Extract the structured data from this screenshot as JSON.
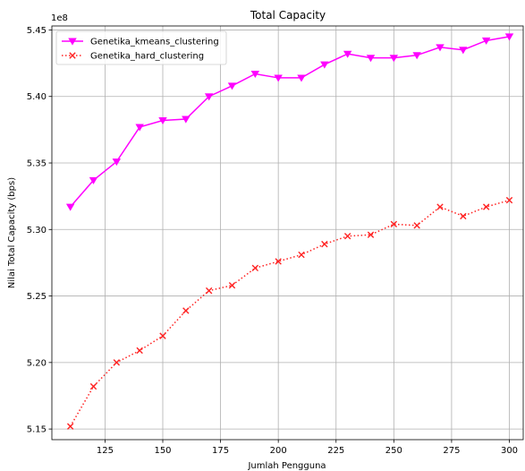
{
  "chart_data": {
    "type": "line",
    "title": "Total Capacity",
    "xlabel": "Jumlah Pengguna",
    "ylabel": "Nilai Total Capacity (bps)",
    "offset_label": "1e8",
    "xlim": [
      102,
      306
    ],
    "ylim": [
      5.142,
      5.453
    ],
    "grid": true,
    "legend_position": "top-left",
    "x": [
      110,
      120,
      130,
      140,
      150,
      160,
      170,
      180,
      190,
      200,
      210,
      220,
      230,
      240,
      250,
      260,
      270,
      280,
      290,
      300
    ],
    "xticks": [
      "125",
      "150",
      "175",
      "200",
      "225",
      "250",
      "275",
      "300"
    ],
    "xtick_values": [
      125,
      150,
      175,
      200,
      225,
      250,
      275,
      300
    ],
    "yticks": [
      "5.15",
      "5.20",
      "5.25",
      "5.30",
      "5.35",
      "5.40",
      "5.45"
    ],
    "ytick_values": [
      5.15,
      5.2,
      5.25,
      5.3,
      5.35,
      5.4,
      5.45
    ],
    "series": [
      {
        "name": "Genetika_kmeans_clustering",
        "color": "#ff00ff",
        "line_style": "solid",
        "marker": "triangle-down",
        "values": [
          5.317,
          5.337,
          5.351,
          5.377,
          5.382,
          5.383,
          5.4,
          5.408,
          5.417,
          5.414,
          5.414,
          5.424,
          5.432,
          5.429,
          5.429,
          5.431,
          5.437,
          5.435,
          5.442,
          5.445
        ]
      },
      {
        "name": "Genetika_hard_clustering",
        "color": "#ff2222",
        "line_style": "dotted",
        "marker": "x",
        "values": [
          5.152,
          5.182,
          5.2,
          5.209,
          5.22,
          5.239,
          5.254,
          5.258,
          5.271,
          5.276,
          5.281,
          5.289,
          5.295,
          5.296,
          5.304,
          5.303,
          5.317,
          5.31,
          5.317,
          5.322
        ]
      }
    ]
  }
}
